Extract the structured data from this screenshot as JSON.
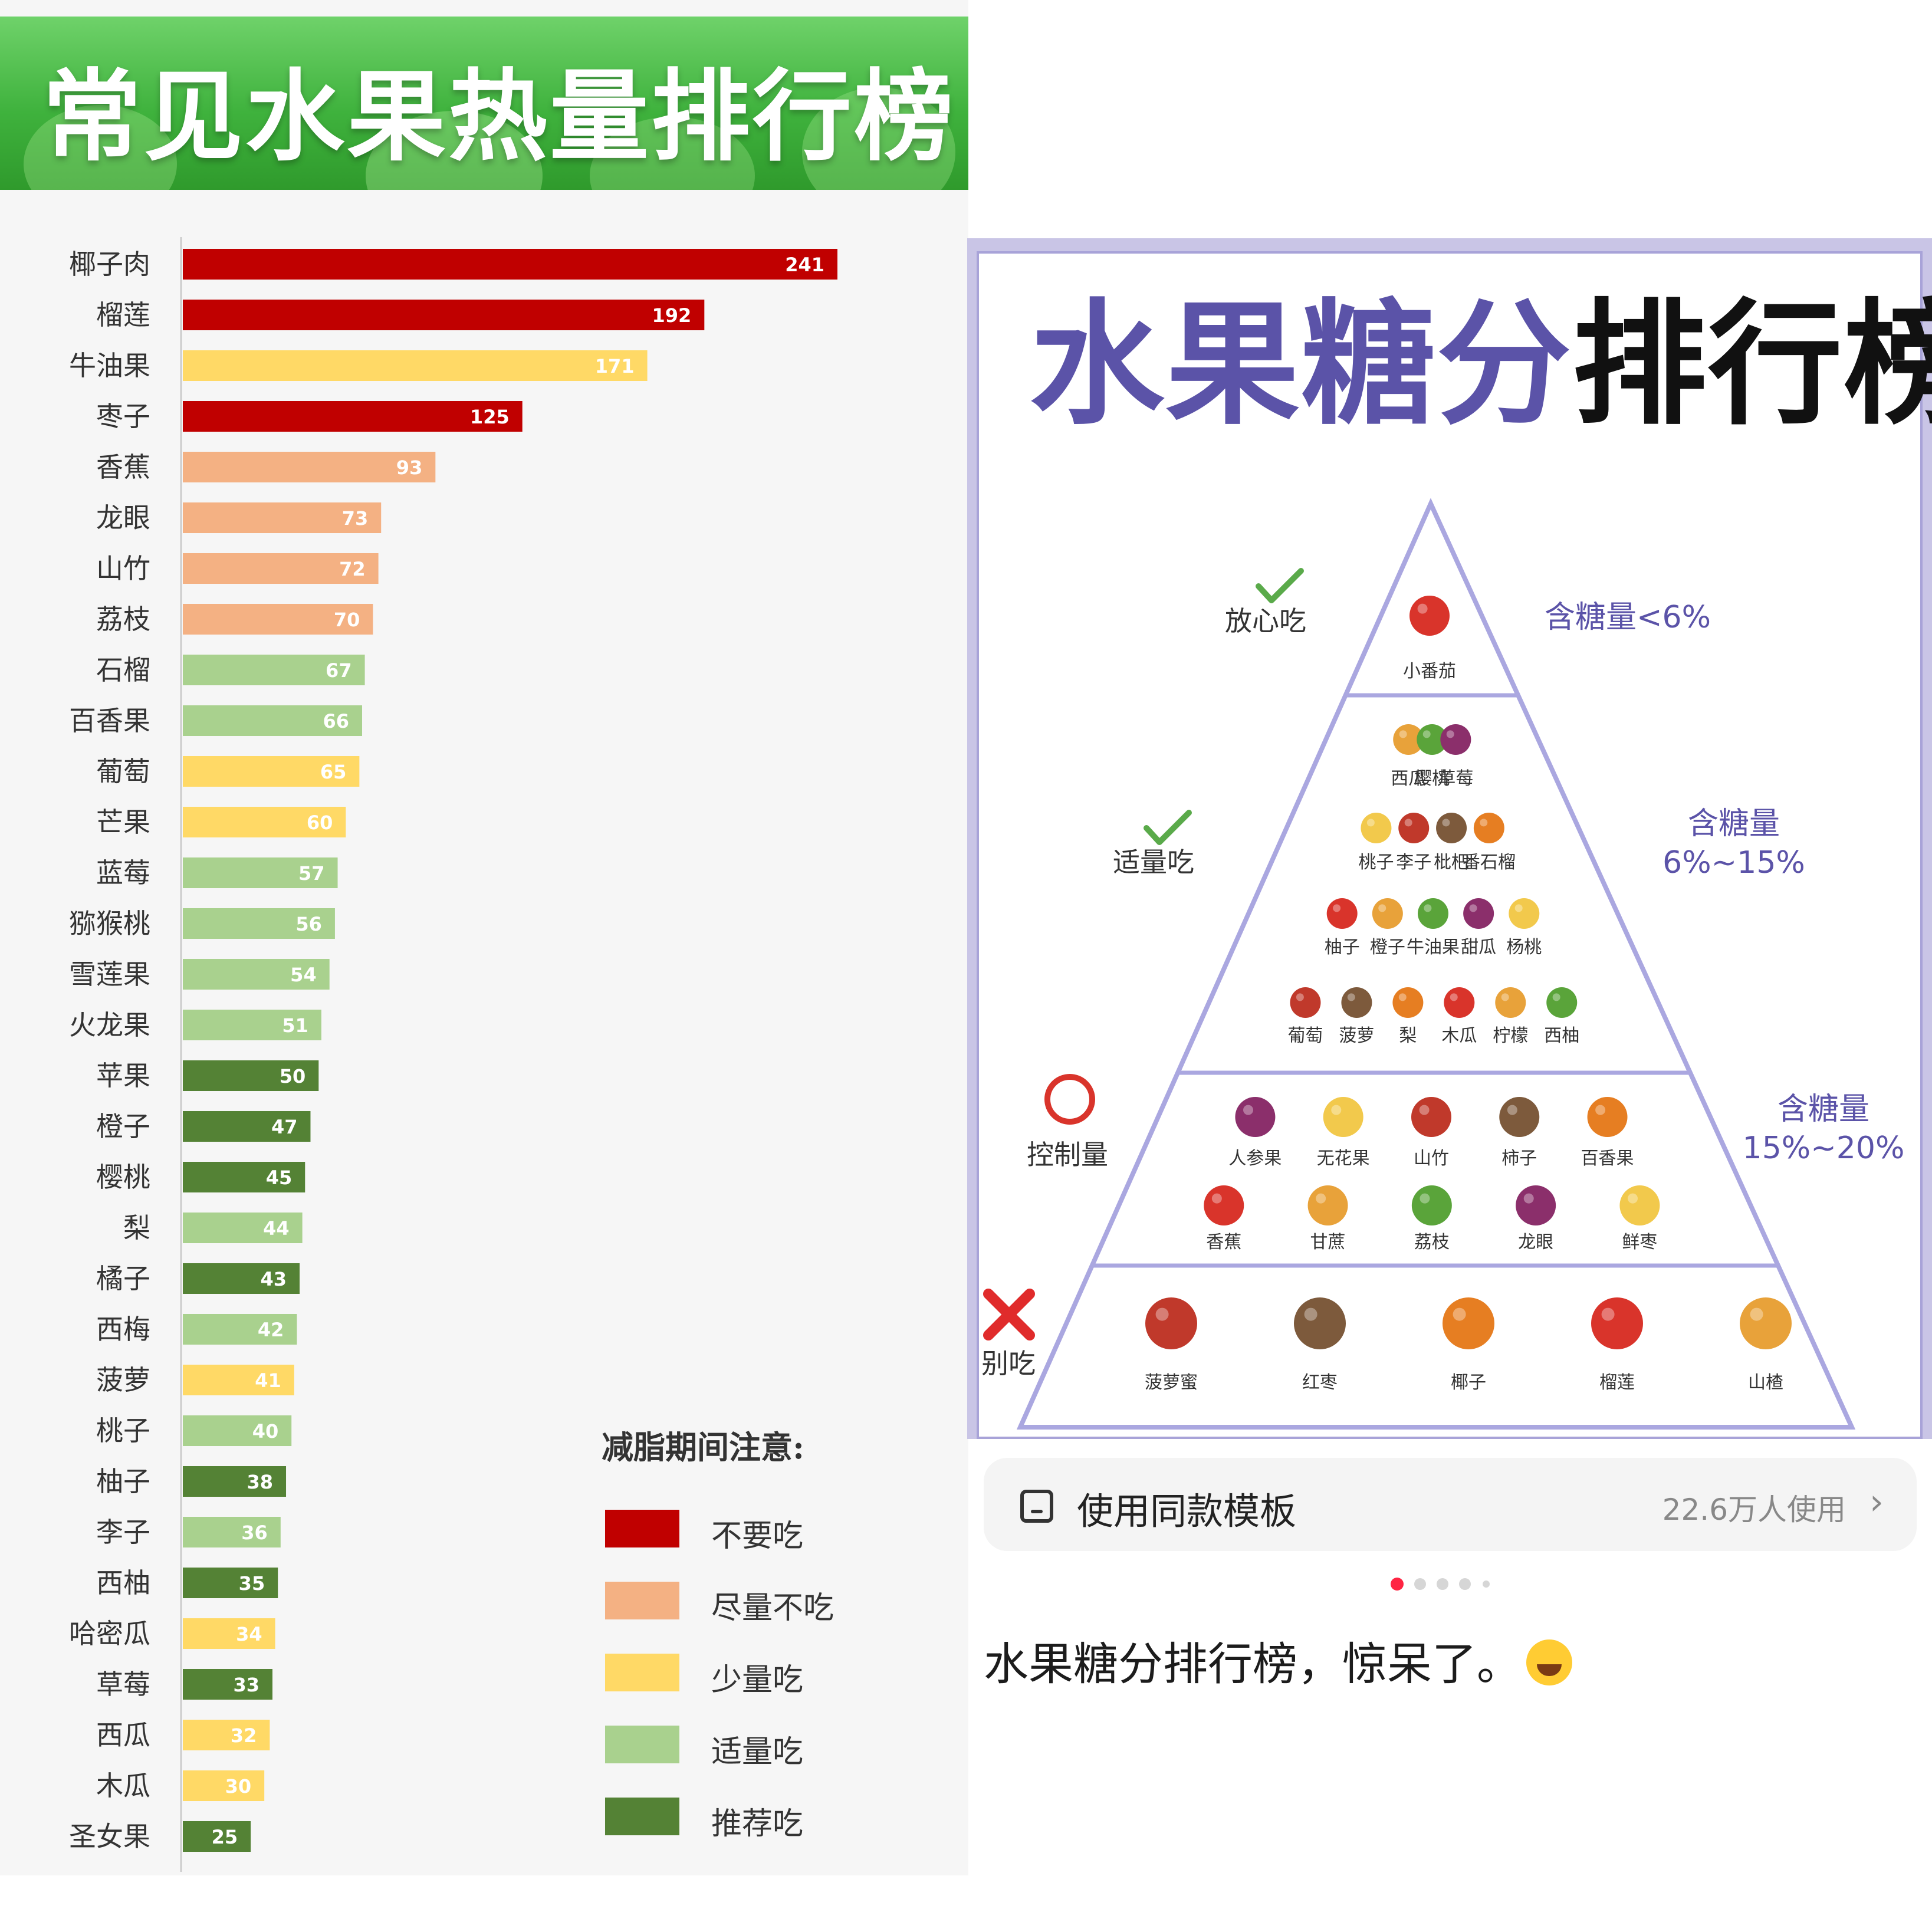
{
  "left": {
    "title": "常见水果热量排行榜",
    "legend_title": "减脂期间注意:",
    "legend": [
      {
        "label": "不要吃",
        "color": "#c00000"
      },
      {
        "label": "尽量不吃",
        "color": "#f4b183"
      },
      {
        "label": "少量吃",
        "color": "#ffd966"
      },
      {
        "label": "适量吃",
        "color": "#a9d18e"
      },
      {
        "label": "推荐吃",
        "color": "#548235"
      }
    ]
  },
  "chart_data": {
    "type": "bar",
    "orientation": "horizontal",
    "title": "常见水果热量排行榜",
    "categories": [
      "椰子肉",
      "榴莲",
      "牛油果",
      "枣子",
      "香蕉",
      "龙眼",
      "山竹",
      "荔枝",
      "石榴",
      "百香果",
      "葡萄",
      "芒果",
      "蓝莓",
      "猕猴桃",
      "雪莲果",
      "火龙果",
      "苹果",
      "橙子",
      "樱桃",
      "梨",
      "橘子",
      "西梅",
      "菠萝",
      "桃子",
      "柚子",
      "李子",
      "西柚",
      "哈密瓜",
      "草莓",
      "西瓜",
      "木瓜",
      "圣女果"
    ],
    "values": [
      241,
      192,
      171,
      125,
      93,
      73,
      72,
      70,
      67,
      66,
      65,
      60,
      57,
      56,
      54,
      51,
      50,
      47,
      45,
      44,
      43,
      42,
      41,
      40,
      38,
      36,
      35,
      34,
      33,
      32,
      30,
      25
    ],
    "levels": [
      0,
      0,
      2,
      0,
      1,
      1,
      1,
      1,
      3,
      3,
      2,
      2,
      3,
      3,
      3,
      3,
      4,
      4,
      4,
      3,
      4,
      3,
      2,
      3,
      4,
      3,
      4,
      2,
      4,
      2,
      2,
      4
    ],
    "level_colors": [
      "#c00000",
      "#f4b183",
      "#ffd966",
      "#a9d18e",
      "#548235"
    ],
    "xlim": [
      0,
      241
    ],
    "grid": false,
    "legend_placement": "bottom-right"
  },
  "right": {
    "title_part1": "水果糖分",
    "title_part2": "排行榜",
    "tiers": [
      {
        "action": "放心吃",
        "mark": "check",
        "sugar": [
          "含糖量<6%"
        ],
        "fruits": [
          "小番茄"
        ]
      },
      {
        "action": "适量吃",
        "mark": "check",
        "sugar": [
          "含糖量",
          "6%~15%"
        ],
        "rows": [
          [
            "西瓜",
            "樱桃",
            "草莓"
          ],
          [
            "桃子",
            "李子",
            "枇杷",
            "番石榴"
          ],
          [
            "柚子",
            "橙子",
            "牛油果",
            "甜瓜",
            "杨桃"
          ],
          [
            "葡萄",
            "菠萝",
            "梨",
            "木瓜",
            "柠檬",
            "西柚"
          ]
        ]
      },
      {
        "action": "控制量",
        "mark": "circle",
        "sugar": [
          "含糖量",
          "15%~20%"
        ],
        "rows": [
          [
            "人参果",
            "无花果",
            "山竹",
            "柿子",
            "百香果"
          ],
          [
            "香蕉",
            "甘蔗",
            "荔枝",
            "龙眼",
            "鲜枣"
          ]
        ]
      },
      {
        "action": "别吃",
        "mark": "cross",
        "sugar": [],
        "rows": [
          [
            "菠萝蜜",
            "红枣",
            "椰子",
            "榴莲",
            "山楂"
          ]
        ]
      }
    ]
  },
  "template": {
    "label": "使用同款模板",
    "count": "22.6万人使用"
  },
  "caption": "水果糖分排行榜，惊呆了。"
}
